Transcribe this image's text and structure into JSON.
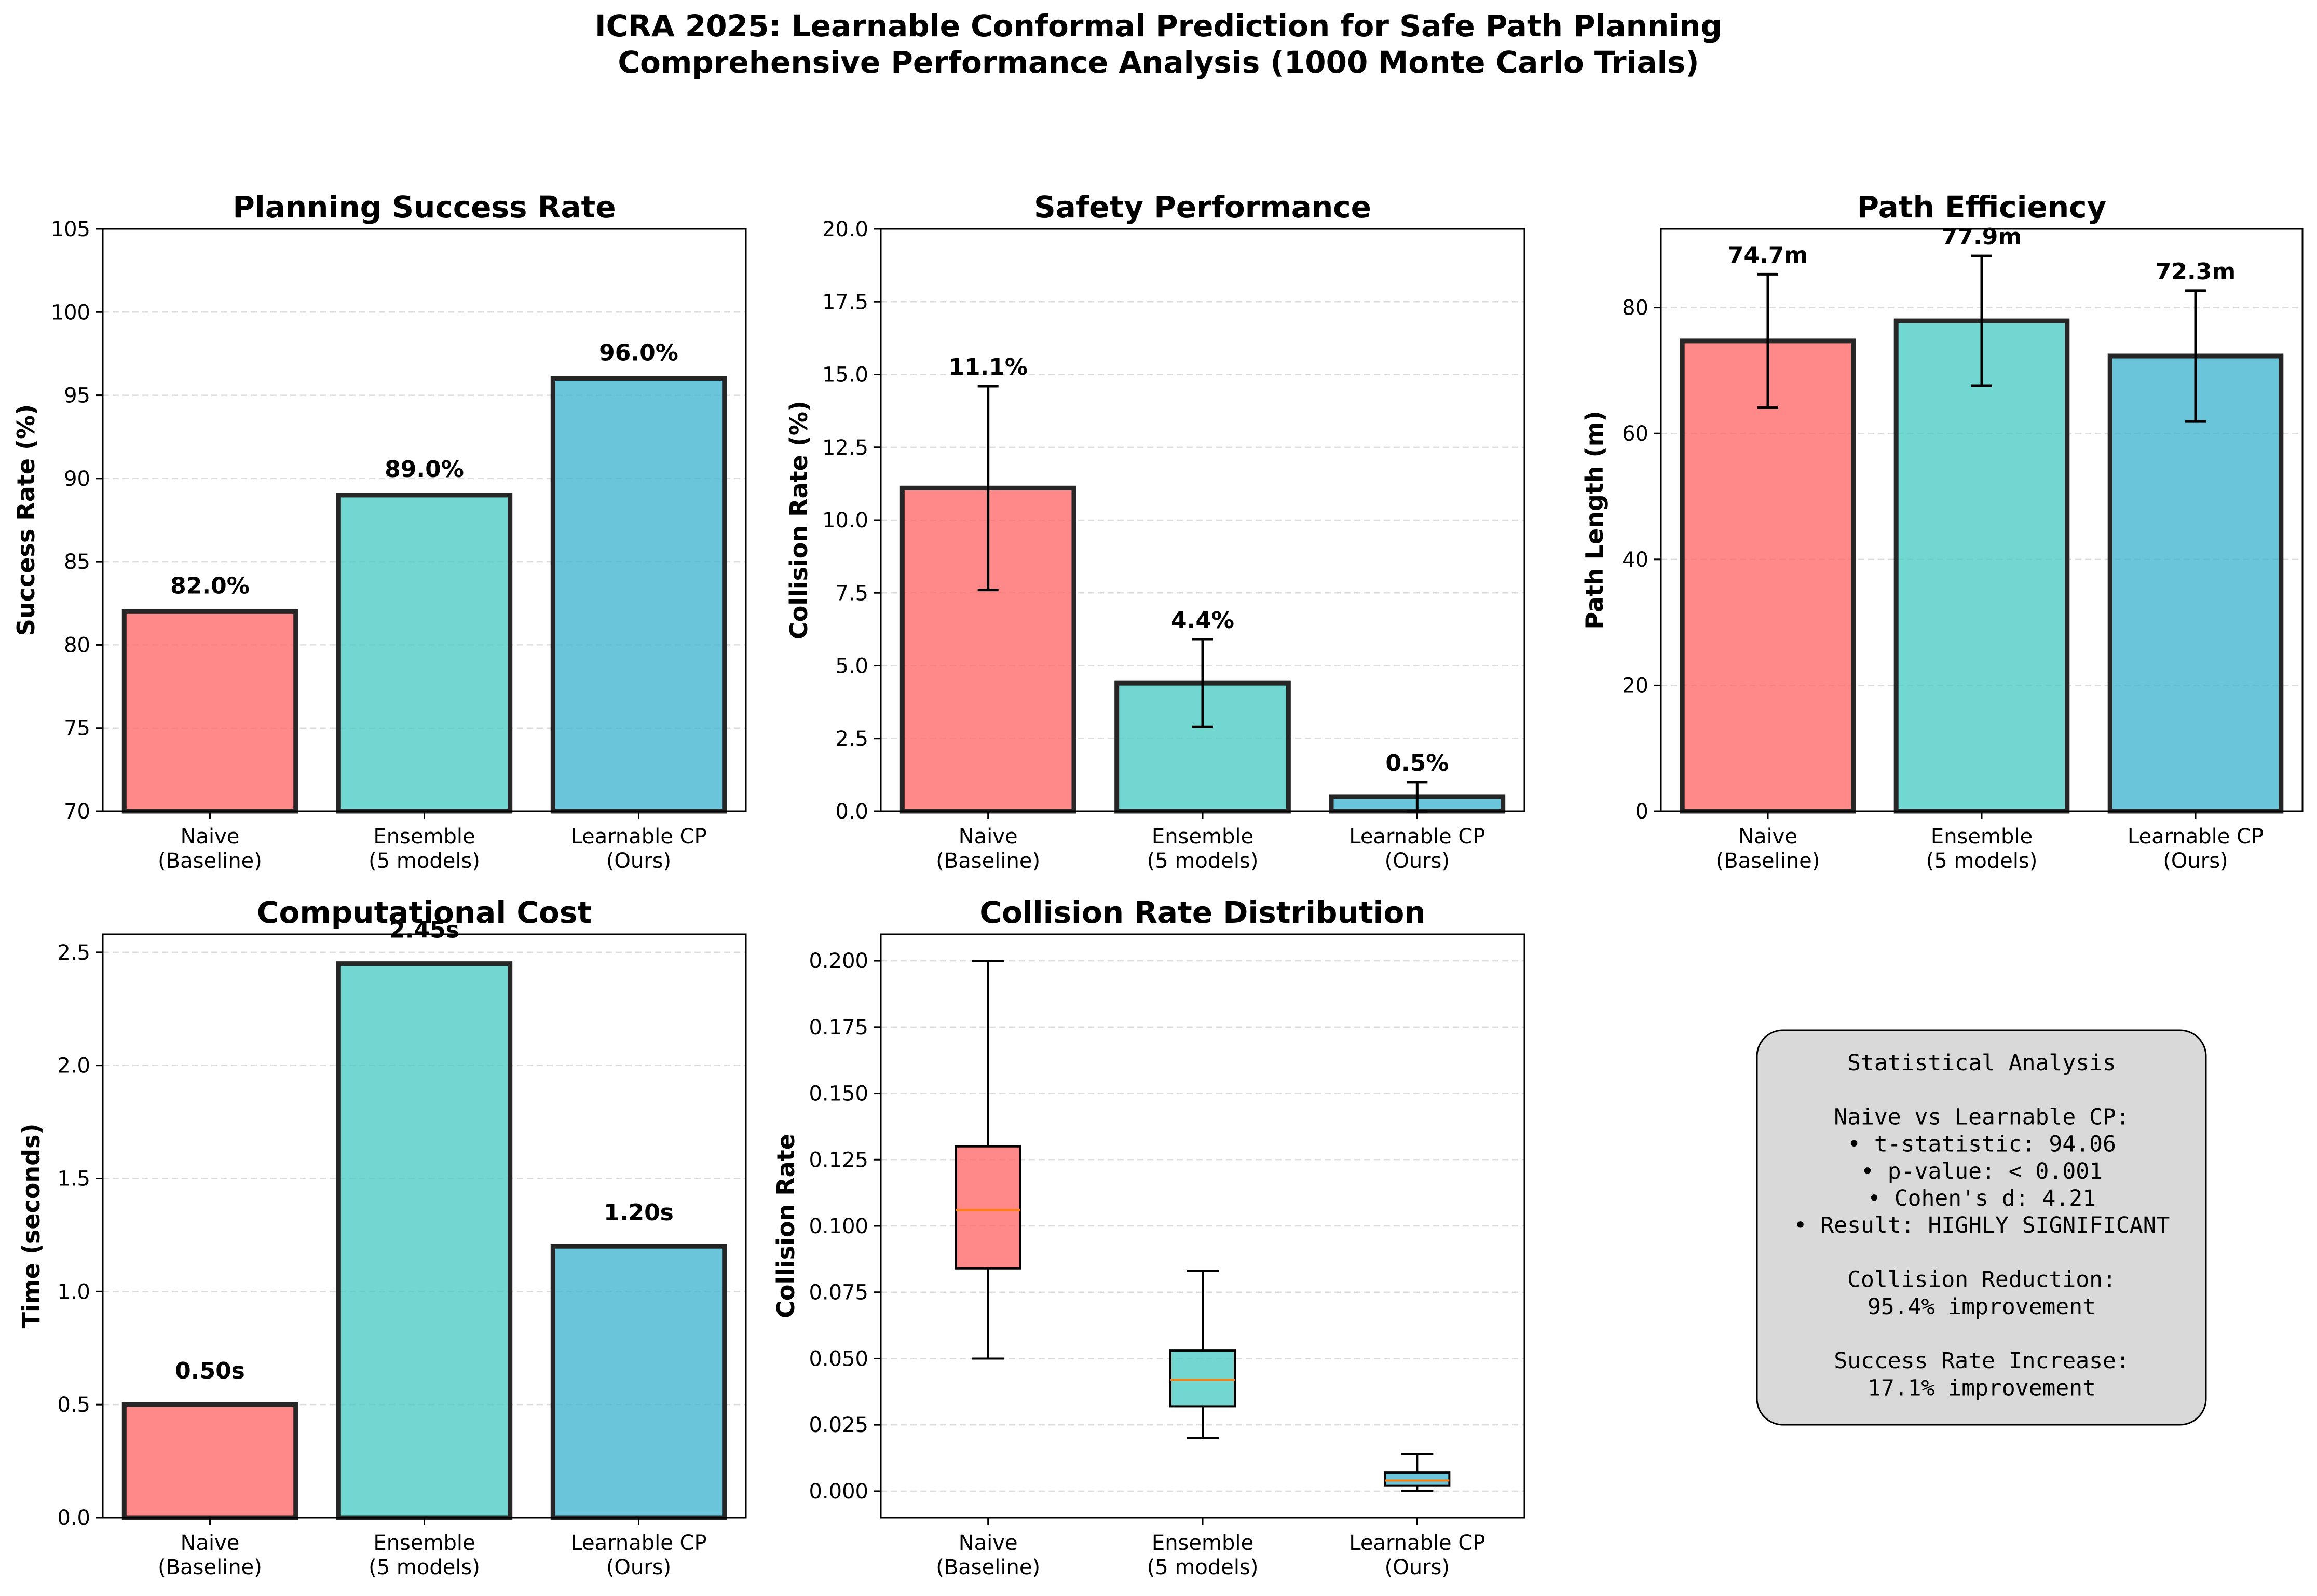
{
  "figure": {
    "title_line1": "ICRA 2025: Learnable Conformal Prediction for Safe Path Planning",
    "title_line2": "Comprehensive Performance Analysis (1000 Monte Carlo Trials)"
  },
  "colors": {
    "naive": "#ff6b6b",
    "ensemble": "#4ecdc4",
    "learnable": "#45b7d1",
    "median": "#ff7f0e",
    "edge": "#262626",
    "grid": "#dddddd",
    "stats_box": "#d9d9d9"
  },
  "chart_data": [
    {
      "type": "bar",
      "title": "Planning Success Rate",
      "ylabel": "Success Rate (%)",
      "xlabel": "",
      "categories": [
        "Naive\n(Baseline)",
        "Ensemble\n(5 models)",
        "Learnable CP\n(Ours)"
      ],
      "values": [
        82.0,
        89.0,
        96.0
      ],
      "labels": [
        "82.0%",
        "89.0%",
        "96.0%"
      ],
      "ylim": [
        70,
        105
      ],
      "yticks": [
        70,
        75,
        80,
        85,
        90,
        95,
        100,
        105
      ],
      "grid": "y-dashed"
    },
    {
      "type": "bar",
      "title": "Safety Performance",
      "ylabel": "Collision Rate (%)",
      "xlabel": "",
      "categories": [
        "Naive\n(Baseline)",
        "Ensemble\n(5 models)",
        "Learnable CP\n(Ours)"
      ],
      "values": [
        11.1,
        4.4,
        0.5
      ],
      "errors": [
        3.5,
        1.5,
        0.5
      ],
      "labels": [
        "11.1%",
        "4.4%",
        "0.5%"
      ],
      "ylim": [
        0,
        20
      ],
      "yticks": [
        0.0,
        2.5,
        5.0,
        7.5,
        10.0,
        12.5,
        15.0,
        17.5,
        20.0
      ],
      "grid": "y-dashed"
    },
    {
      "type": "bar",
      "title": "Path Efficiency",
      "ylabel": "Path Length (m)",
      "xlabel": "",
      "categories": [
        "Naive\n(Baseline)",
        "Ensemble\n(5 models)",
        "Learnable CP\n(Ours)"
      ],
      "values": [
        74.7,
        77.9,
        72.3
      ],
      "errors": [
        10.6,
        10.3,
        10.4
      ],
      "labels": [
        "74.7m",
        "77.9m",
        "72.3m"
      ],
      "ylim": [
        0,
        92.5
      ],
      "yticks": [
        0,
        20,
        40,
        60,
        80
      ],
      "grid": "y-dashed"
    },
    {
      "type": "bar",
      "title": "Computational Cost",
      "ylabel": "Time (seconds)",
      "xlabel": "",
      "categories": [
        "Naive\n(Baseline)",
        "Ensemble\n(5 models)",
        "Learnable CP\n(Ours)"
      ],
      "values": [
        0.5,
        2.45,
        1.2
      ],
      "labels": [
        "0.50s",
        "2.45s",
        "1.20s"
      ],
      "ylim": [
        0,
        2.58
      ],
      "yticks": [
        0.0,
        0.5,
        1.0,
        1.5,
        2.0,
        2.5
      ],
      "grid": "y-dashed"
    },
    {
      "type": "box",
      "title": "Collision Rate Distribution",
      "ylabel": "Collision Rate",
      "xlabel": "",
      "categories": [
        "Naive\n(Baseline)",
        "Ensemble\n(5 models)",
        "Learnable CP\n(Ours)"
      ],
      "boxes": [
        {
          "whislo": 0.05,
          "q1": 0.084,
          "med": 0.106,
          "q3": 0.13,
          "whishi": 0.2
        },
        {
          "whislo": 0.02,
          "q1": 0.032,
          "med": 0.042,
          "q3": 0.053,
          "whishi": 0.083
        },
        {
          "whislo": 0.0,
          "q1": 0.002,
          "med": 0.004,
          "q3": 0.007,
          "whishi": 0.014
        }
      ],
      "ylim": [
        -0.01,
        0.21
      ],
      "yticks": [
        0.0,
        0.025,
        0.05,
        0.075,
        0.1,
        0.125,
        0.15,
        0.175,
        0.2
      ],
      "ytick_labels": [
        "0.000",
        "0.025",
        "0.050",
        "0.075",
        "0.100",
        "0.125",
        "0.150",
        "0.175",
        "0.200"
      ],
      "grid": "y-dashed"
    }
  ],
  "stats_box": {
    "lines": [
      "Statistical Analysis",
      "",
      "Naive vs Learnable CP:",
      "• t-statistic: 94.06",
      "• p-value: < 0.001",
      "• Cohen's d: 4.21",
      "• Result: HIGHLY SIGNIFICANT",
      "",
      "Collision Reduction:",
      "95.4% improvement",
      "",
      "Success Rate Increase:",
      "17.1% improvement"
    ]
  }
}
